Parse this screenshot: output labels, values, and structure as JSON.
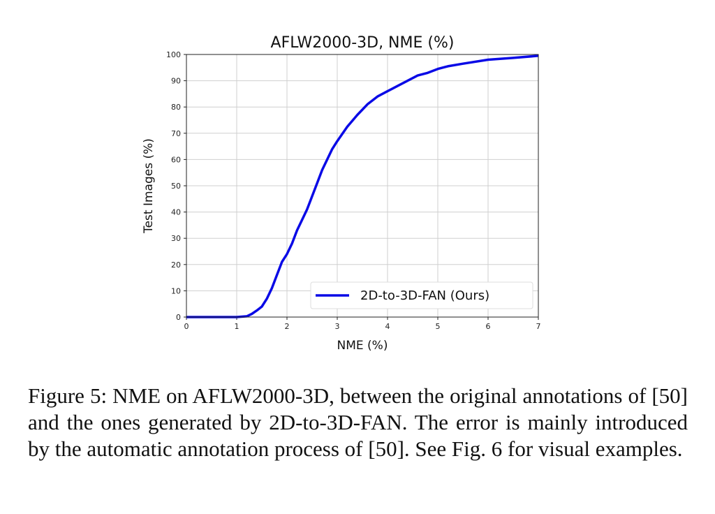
{
  "chart_data": {
    "type": "line",
    "title": "AFLW2000-3D, NME (%)",
    "xlabel": "NME (%)",
    "ylabel": "Test Images (%)",
    "xlim": [
      0,
      7
    ],
    "ylim": [
      0,
      100
    ],
    "xticks": [
      "0",
      "1",
      "2",
      "3",
      "4",
      "5",
      "6",
      "7"
    ],
    "yticks": [
      "0",
      "10",
      "20",
      "30",
      "40",
      "50",
      "60",
      "70",
      "80",
      "90",
      "100"
    ],
    "grid": true,
    "legend_position": "bottom-right",
    "series": [
      {
        "name": "2D-to-3D-FAN (Ours)",
        "color": "#0a0ae6",
        "x": [
          0,
          1,
          1.2,
          1.3,
          1.4,
          1.5,
          1.6,
          1.7,
          1.8,
          1.9,
          2.0,
          2.1,
          2.2,
          2.3,
          2.4,
          2.5,
          2.6,
          2.7,
          2.8,
          2.9,
          3.0,
          3.2,
          3.4,
          3.5,
          3.6,
          3.8,
          4.0,
          4.2,
          4.4,
          4.6,
          4.8,
          5.0,
          5.2,
          5.5,
          6.0,
          6.5,
          7.0
        ],
        "y": [
          0,
          0,
          0.3,
          1.2,
          2.5,
          4,
          7,
          11,
          16,
          21,
          24,
          28,
          33,
          37,
          41,
          46,
          51,
          56,
          60,
          64,
          67,
          72.5,
          77,
          79,
          81,
          84,
          86,
          88,
          90,
          92,
          93,
          94.5,
          95.5,
          96.5,
          98,
          98.7,
          99.5
        ]
      }
    ]
  },
  "caption": "Figure 5: NME on AFLW2000-3D, between the original annotations of [50] and the ones generated by 2D-to-3D-FAN. The error is mainly introduced by the automatic annotation process of [50]. See Fig. 6 for visual examples."
}
